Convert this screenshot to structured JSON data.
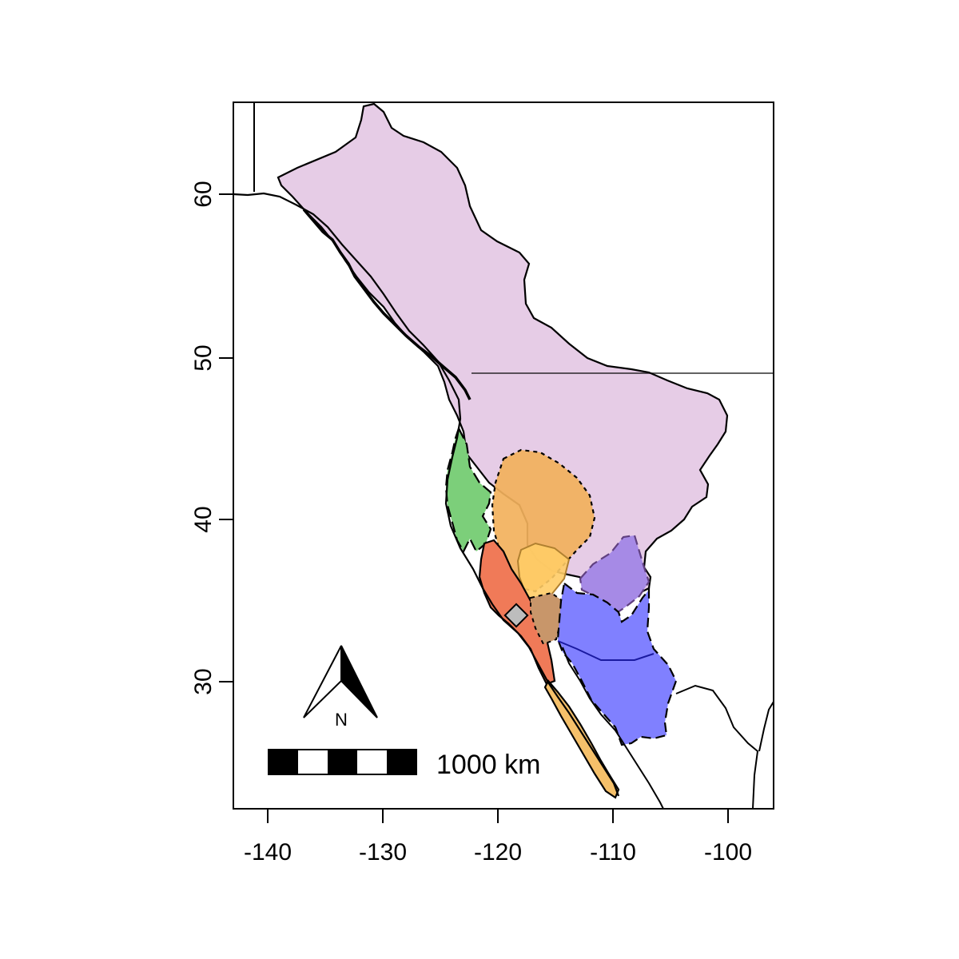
{
  "map": {
    "axes": {
      "x_ticks": [
        "-140",
        "-130",
        "-120",
        "-110",
        "-100"
      ],
      "y_ticks": [
        "30",
        "40",
        "50",
        "60"
      ]
    },
    "scale_bar": {
      "label": "1000 km"
    },
    "north_arrow": {
      "label": "N"
    },
    "colors": {
      "purple_range": "#e6cce6",
      "orange_range": "#f2b15c",
      "green_range": "#7ccf7a",
      "red_range": "#f07a58",
      "blue_range": "#8080ff",
      "violet_range": "#a68ae6",
      "baja_range": "#f5c06a",
      "marker": "#bdbdbd"
    },
    "icons": [
      "north-arrow-icon",
      "site-marker-icon"
    ]
  }
}
